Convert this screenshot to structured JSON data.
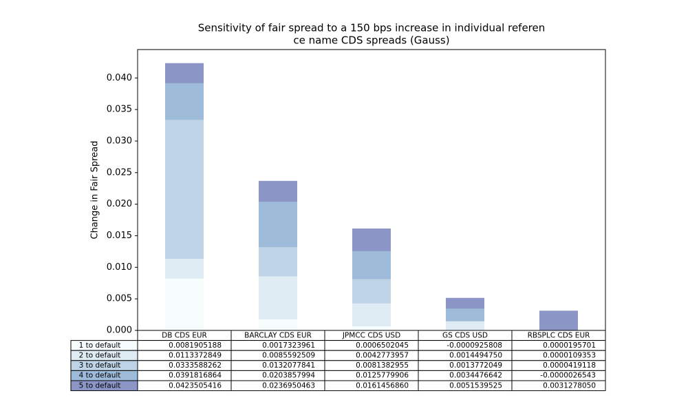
{
  "chart_data": {
    "type": "bar",
    "title": [
      "Sensitivity of fair spread to a 150 bps increase in individual referen",
      "ce name CDS spreads (Gauss)"
    ],
    "y_label": "Change in Fair Spread",
    "categories": [
      "DB CDS EUR",
      "BARCLAY CDS EUR",
      "JPMCC CDS USD",
      "GS CDS USD",
      "RBSPLC CDS EUR"
    ],
    "series": [
      {
        "name": "1 to default",
        "color": "#f7fcfd",
        "values": [
          0.0081905188,
          0.0017323961,
          0.0006502045,
          -9.25808e-05,
          1.95701e-05
        ],
        "value_labels": [
          "0.0081905188",
          "0.0017323961",
          "0.0006502045",
          "-0.0000925808",
          "0.0000195701"
        ]
      },
      {
        "name": "2 to default",
        "color": "#e0ecf4",
        "values": [
          0.0113372849,
          0.0085592509,
          0.0042773957,
          0.001449475,
          1.09353e-05
        ],
        "value_labels": [
          "0.0113372849",
          "0.0085592509",
          "0.0042773957",
          "0.0014494750",
          "0.0000109353"
        ]
      },
      {
        "name": "3 to default",
        "color": "#bfd3e6",
        "values": [
          0.0333588262,
          0.0132077841,
          0.0081382955,
          0.0013772049,
          4.19118e-05
        ],
        "value_labels": [
          "0.0333588262",
          "0.0132077841",
          "0.0081382955",
          "0.0013772049",
          "0.0000419118"
        ]
      },
      {
        "name": "4 to default",
        "color": "#9ebcda",
        "values": [
          0.0391816864,
          0.0203857994,
          0.0125779906,
          0.0034476642,
          -2.6543e-06
        ],
        "value_labels": [
          "0.0391816864",
          "0.0203857994",
          "0.0125779906",
          "0.0034476642",
          "-0.0000026543"
        ]
      },
      {
        "name": "5 to default",
        "color": "#8c96c6",
        "values": [
          0.0423505416,
          0.0236950463,
          0.016145686,
          0.0051539525,
          0.003127805
        ],
        "value_labels": [
          "0.0423505416",
          "0.0236950463",
          "0.0161456860",
          "0.0051539525",
          "0.0031278050"
        ]
      }
    ],
    "ylim": [
      0,
      0.0445
    ],
    "yticks": [
      {
        "value": 0,
        "label": "0.000"
      },
      {
        "value": 0.005,
        "label": "0.005"
      },
      {
        "value": 0.01,
        "label": "0.010"
      },
      {
        "value": 0.015,
        "label": "0.015"
      },
      {
        "value": 0.02,
        "label": "0.020"
      },
      {
        "value": 0.025,
        "label": "0.025"
      },
      {
        "value": 0.03,
        "label": "0.030"
      },
      {
        "value": 0.035,
        "label": "0.035"
      },
      {
        "value": 0.04,
        "label": "0.040"
      }
    ]
  }
}
